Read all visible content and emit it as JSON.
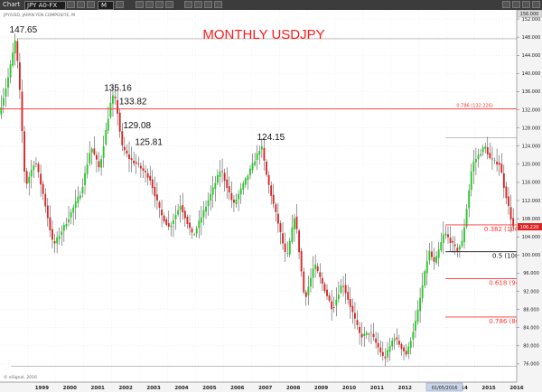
{
  "toolbar": {
    "app_label": "Chart",
    "symbol": "JPY A0-FX",
    "interval": "M"
  },
  "chart_header": "JPY/USD, JAPAN YEN COMPOSITE, M",
  "watermark": "© eSignal, 2016",
  "date_box": "01/05/2016",
  "colors": {
    "up": "#22cc22",
    "down": "#dd2222",
    "fib_red": "#ff3333",
    "fib_black": "#111111"
  },
  "chart_data": {
    "type": "candlestick",
    "title": "MONTHLY USDJPY",
    "y_axis": {
      "min": 72,
      "max": 154,
      "ticks": [
        152.0,
        148.0,
        144.0,
        140.0,
        136.0,
        132.0,
        128.0,
        124.0,
        120.0,
        116.0,
        112.0,
        108.0,
        104.0,
        100.0,
        96.0,
        92.0,
        88.0,
        84.0,
        80.0,
        76.0
      ],
      "tick_labels": [
        "152.000",
        "148.000",
        "144.000",
        "140.000",
        "136.000",
        "132.000",
        "128.000",
        "124.000",
        "120.000",
        "116.000",
        "112.000",
        "108.000",
        "104.000",
        "100.000",
        "96.000",
        "92.000",
        "88.000",
        "84.000",
        "80.000",
        "76.000"
      ],
      "top_label": "156.000",
      "current_price_label": "106.220",
      "current_price": 106.22
    },
    "x_axis": {
      "start_year": 1998,
      "end_year": 2016.5,
      "year_ticks": [
        1999,
        2000,
        2001,
        2002,
        2003,
        2004,
        2005,
        2006,
        2007,
        2008,
        2009,
        2010,
        2011,
        2012,
        2013,
        2014,
        2015,
        2016
      ],
      "labels": [
        "1999",
        "2000",
        "2001",
        "2002",
        "2003",
        "2004",
        "2005",
        "2006",
        "2007",
        "2008",
        "2009",
        "2010",
        "2011",
        "2012",
        "2013",
        "2014",
        "2015",
        "2016"
      ]
    },
    "anchors": [
      [
        1998.0,
        131
      ],
      [
        1998.3,
        138
      ],
      [
        1998.6,
        147.65
      ],
      [
        1998.75,
        136
      ],
      [
        1998.95,
        115
      ],
      [
        1999.3,
        121
      ],
      [
        1999.6,
        113
      ],
      [
        1999.95,
        102
      ],
      [
        2000.4,
        107
      ],
      [
        2000.95,
        114
      ],
      [
        2001.3,
        124
      ],
      [
        2001.6,
        119
      ],
      [
        2002.05,
        135.16
      ],
      [
        2002.2,
        133.82
      ],
      [
        2002.4,
        124
      ],
      [
        2002.7,
        121
      ],
      [
        2002.95,
        120
      ],
      [
        2003.4,
        117
      ],
      [
        2003.8,
        109
      ],
      [
        2004.1,
        106
      ],
      [
        2004.5,
        111
      ],
      [
        2004.95,
        104
      ],
      [
        2005.5,
        112
      ],
      [
        2005.95,
        119
      ],
      [
        2006.4,
        111
      ],
      [
        2006.95,
        118
      ],
      [
        2007.4,
        124.15
      ],
      [
        2007.6,
        117
      ],
      [
        2008.0,
        107
      ],
      [
        2008.3,
        99
      ],
      [
        2008.6,
        109
      ],
      [
        2008.95,
        90
      ],
      [
        2009.3,
        98
      ],
      [
        2009.95,
        88
      ],
      [
        2010.3,
        94
      ],
      [
        2010.95,
        82
      ],
      [
        2011.3,
        83
      ],
      [
        2011.8,
        77
      ],
      [
        2012.15,
        82
      ],
      [
        2012.6,
        78
      ],
      [
        2012.95,
        86
      ],
      [
        2013.4,
        101
      ],
      [
        2013.6,
        98
      ],
      [
        2013.95,
        105
      ],
      [
        2014.4,
        101
      ],
      [
        2014.6,
        103
      ],
      [
        2014.95,
        120
      ],
      [
        2015.4,
        124
      ],
      [
        2015.6,
        121
      ],
      [
        2015.95,
        120
      ],
      [
        2016.05,
        116
      ],
      [
        2016.2,
        112
      ],
      [
        2016.4,
        106.22
      ]
    ],
    "annotations": [
      {
        "label": "147.65",
        "x": 1998.6,
        "y": 147.65
      },
      {
        "label": "135.16",
        "x": 2002.05,
        "y": 135.16
      },
      {
        "label": "133.82",
        "x": 2002.2,
        "y": 133.82
      },
      {
        "label": "129.08",
        "x": 2002.35,
        "y": 129.08
      },
      {
        "label": "125.81",
        "x": 2002.7,
        "y": 125.81
      },
      {
        "label": "124.15",
        "x": 2007.4,
        "y": 124.15
      }
    ],
    "hlines": [
      {
        "label": "0.786 (132.226)",
        "value": 132.226,
        "color": "#ff3333",
        "x_from": 1998.0,
        "x_to": 2016.5,
        "label_x": 2016.25
      },
      {
        "label": "0.382 (106.649)",
        "value": 106.649,
        "color": "#ff3333",
        "x_from": 2013.95,
        "x_to": 2016.5,
        "label_x": 2016.25
      },
      {
        "label": "0.5 (100.715)",
        "value": 100.715,
        "color": "#111111",
        "x_from": 2013.95,
        "x_to": 2016.5,
        "label_x": 2016.4
      },
      {
        "label": "0.618 (94.782)",
        "value": 94.782,
        "color": "#ff3333",
        "x_from": 2013.95,
        "x_to": 2016.5,
        "label_x": 2016.35
      },
      {
        "label": "0.786 (86.335)",
        "value": 86.335,
        "color": "#ff3333",
        "x_from": 2013.95,
        "x_to": 2016.5,
        "label_x": 2016.35
      }
    ],
    "ref_lines": [
      {
        "value": 147.65,
        "x_from": 1998.6,
        "x_to": 2016.5
      },
      {
        "value": 125.8,
        "x_from": 2013.95,
        "x_to": 2016.5
      },
      {
        "value": 75.5,
        "x_from": 1998.4,
        "x_to": 2016.5
      }
    ]
  }
}
